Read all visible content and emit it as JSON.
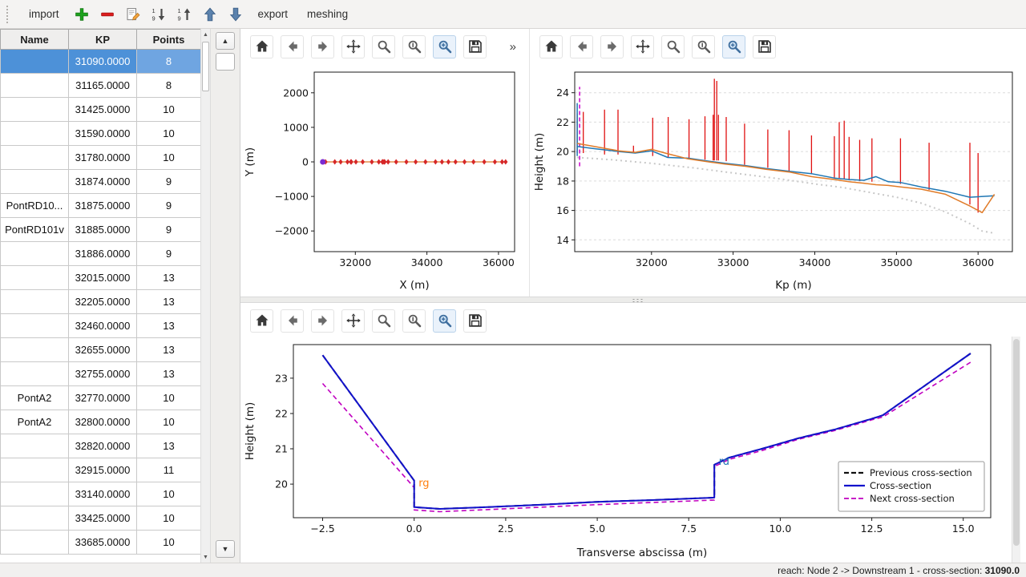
{
  "icons": {
    "up_arrow": "▲",
    "down_arrow": "▼"
  },
  "menubar": {
    "items": [
      {
        "kind": "button",
        "label": "import",
        "name": "import-button"
      },
      {
        "kind": "icon",
        "icon": "add",
        "name": "add-cross-section-button"
      },
      {
        "kind": "icon",
        "icon": "remove",
        "name": "remove-cross-section-button"
      },
      {
        "kind": "icon",
        "icon": "edit",
        "name": "edit-cross-section-button"
      },
      {
        "kind": "icon",
        "icon": "sort-down",
        "name": "sort-down-button"
      },
      {
        "kind": "icon",
        "icon": "sort-up",
        "name": "sort-up-button"
      },
      {
        "kind": "icon",
        "icon": "move-up",
        "name": "move-up-button"
      },
      {
        "kind": "icon",
        "icon": "move-down",
        "name": "move-down-button"
      },
      {
        "kind": "button",
        "label": "export",
        "name": "export-button"
      },
      {
        "kind": "button",
        "label": "meshing",
        "name": "meshing-button"
      }
    ]
  },
  "table": {
    "columns": [
      "Name",
      "KP",
      "Points"
    ],
    "selected_index": 0,
    "rows": [
      {
        "name": "",
        "kp": "31090.0000",
        "points": "8"
      },
      {
        "name": "",
        "kp": "31165.0000",
        "points": "8"
      },
      {
        "name": "",
        "kp": "31425.0000",
        "points": "10"
      },
      {
        "name": "",
        "kp": "31590.0000",
        "points": "10"
      },
      {
        "name": "",
        "kp": "31780.0000",
        "points": "10"
      },
      {
        "name": "",
        "kp": "31874.0000",
        "points": "9"
      },
      {
        "name": "PontRD10...",
        "kp": "31875.0000",
        "points": "9"
      },
      {
        "name": "PontRD101v",
        "kp": "31885.0000",
        "points": "9"
      },
      {
        "name": "",
        "kp": "31886.0000",
        "points": "9"
      },
      {
        "name": "",
        "kp": "32015.0000",
        "points": "13"
      },
      {
        "name": "",
        "kp": "32205.0000",
        "points": "13"
      },
      {
        "name": "",
        "kp": "32460.0000",
        "points": "13"
      },
      {
        "name": "",
        "kp": "32655.0000",
        "points": "13"
      },
      {
        "name": "",
        "kp": "32755.0000",
        "points": "13"
      },
      {
        "name": "PontA2",
        "kp": "32770.0000",
        "points": "10"
      },
      {
        "name": "PontA2",
        "kp": "32800.0000",
        "points": "10"
      },
      {
        "name": "",
        "kp": "32820.0000",
        "points": "13"
      },
      {
        "name": "",
        "kp": "32915.0000",
        "points": "11"
      },
      {
        "name": "",
        "kp": "33140.0000",
        "points": "10"
      },
      {
        "name": "",
        "kp": "33425.0000",
        "points": "10"
      },
      {
        "name": "",
        "kp": "33685.0000",
        "points": "10"
      }
    ]
  },
  "plot_toolbar": {
    "icons": [
      "home",
      "back",
      "forward",
      "pan",
      "zoom",
      "subplots",
      "customize",
      "save"
    ],
    "overflow_label": "»"
  },
  "statusbar": {
    "reach_label": "reach: Node 2 -> Downstream 1 - cross-section: ",
    "cross_section_value": "31090.0"
  },
  "chart_data": [
    {
      "id": "plan_view",
      "type": "scatter",
      "title": "",
      "xlabel": "X (m)",
      "ylabel": "Y (m)",
      "xlim": [
        30850,
        36450
      ],
      "ylim": [
        -2600,
        2600
      ],
      "xticks": [
        32000,
        34000,
        36000
      ],
      "yticks": [
        -2000,
        -1000,
        0,
        1000,
        2000
      ],
      "yticklabels": [
        "−2000",
        "−1000",
        "0",
        "1000",
        "2000"
      ],
      "grid": false,
      "series": [
        {
          "name": "river-axis",
          "type": "line",
          "color": "#e07b28",
          "width": 1.2,
          "x": [
            31090,
            36200
          ],
          "y": [
            0,
            0
          ]
        },
        {
          "name": "cross-section-markers",
          "type": "markers",
          "marker": "diamond",
          "color": "#d62728",
          "size": 2.6,
          "x": [
            31090,
            31165,
            31425,
            31590,
            31780,
            31874,
            31886,
            32015,
            32205,
            32460,
            32655,
            32755,
            32770,
            32800,
            32820,
            32915,
            33140,
            33425,
            33685,
            33960,
            34240,
            34420,
            34600,
            34800,
            35050,
            35300,
            35600,
            35900,
            36100,
            36200
          ],
          "y": 0
        },
        {
          "name": "selected-cross-section-marker",
          "type": "markers",
          "marker": "circle",
          "color": "#7a2bd1",
          "size": 3.5,
          "x": [
            31090
          ],
          "y": 0
        }
      ]
    },
    {
      "id": "profile",
      "type": "line",
      "title": "",
      "xlabel": "Kp (m)",
      "ylabel": "Height (m)",
      "xlim": [
        31060,
        36420
      ],
      "ylim": [
        13.2,
        25.4
      ],
      "xticks": [
        32000,
        33000,
        34000,
        35000,
        36000
      ],
      "yticks": [
        14,
        16,
        18,
        20,
        22,
        24
      ],
      "grid": true,
      "series": [
        {
          "name": "thalweg",
          "type": "line",
          "color": "#c8c8c8",
          "width": 2,
          "dash": "2 4",
          "x": [
            31090,
            31500,
            32000,
            32500,
            33000,
            33500,
            34000,
            34350,
            34700,
            35000,
            35300,
            35600,
            35900,
            36050,
            36200
          ],
          "y": [
            19.6,
            19.45,
            19.2,
            18.9,
            18.55,
            18.2,
            17.8,
            17.55,
            17.2,
            16.9,
            16.5,
            15.9,
            15.1,
            14.6,
            14.45
          ]
        },
        {
          "name": "cross-section-extents",
          "type": "vlines",
          "color": "#e01010",
          "width": 1.3,
          "segments": [
            [
              31090,
              19.9,
              22.6
            ],
            [
              31165,
              19.9,
              22.7
            ],
            [
              31425,
              19.8,
              22.85
            ],
            [
              31590,
              19.8,
              22.85
            ],
            [
              31780,
              19.9,
              20.4
            ],
            [
              32015,
              19.7,
              22.3
            ],
            [
              32205,
              19.6,
              22.35
            ],
            [
              32460,
              19.5,
              22.2
            ],
            [
              32655,
              19.45,
              22.4
            ],
            [
              32755,
              19.4,
              22.5
            ],
            [
              32770,
              19.4,
              24.95
            ],
            [
              32800,
              19.4,
              24.8
            ],
            [
              32820,
              19.4,
              22.5
            ],
            [
              32915,
              19.35,
              22.35
            ],
            [
              33140,
              19.1,
              21.9
            ],
            [
              33425,
              18.9,
              21.5
            ],
            [
              33685,
              18.7,
              21.45
            ],
            [
              33960,
              18.5,
              21.1
            ],
            [
              34240,
              18.2,
              21.05
            ],
            [
              34300,
              18.15,
              22.0
            ],
            [
              34360,
              18.1,
              22.1
            ],
            [
              34420,
              18.05,
              21.0
            ],
            [
              34550,
              18.0,
              20.8
            ],
            [
              34700,
              17.95,
              20.9
            ],
            [
              35050,
              17.8,
              20.9
            ],
            [
              35400,
              17.4,
              20.6
            ],
            [
              35900,
              16.4,
              20.6
            ],
            [
              36000,
              15.85,
              19.9
            ]
          ]
        },
        {
          "name": "selected-extent",
          "type": "vlines",
          "color": "#1f77b4",
          "width": 1.5,
          "segments": [
            [
              31090,
              19.7,
              23.3
            ]
          ]
        },
        {
          "name": "selected-extent-highlight",
          "type": "vlines",
          "color": "#cc00cc",
          "width": 1.5,
          "dash": "5 3",
          "segments": [
            [
              31120,
              19.0,
              24.4
            ]
          ]
        },
        {
          "name": "left-bank",
          "type": "line",
          "color": "#1f77b4",
          "width": 1.5,
          "x": [
            31090,
            31300,
            31600,
            31800,
            32000,
            32200,
            32450,
            32700,
            32900,
            33150,
            33400,
            33700,
            33960,
            34240,
            34420,
            34600,
            34750,
            34900,
            35050,
            35300,
            35600,
            35900,
            36200
          ],
          "y": [
            20.35,
            20.2,
            20.0,
            19.9,
            20.05,
            19.6,
            19.55,
            19.35,
            19.2,
            19.05,
            18.85,
            18.65,
            18.5,
            18.2,
            18.1,
            18.05,
            18.3,
            17.95,
            17.9,
            17.6,
            17.3,
            16.9,
            17.0
          ]
        },
        {
          "name": "right-bank",
          "type": "line",
          "color": "#e07b28",
          "width": 1.5,
          "x": [
            31090,
            31300,
            31600,
            31800,
            32000,
            32200,
            32450,
            32700,
            32900,
            33150,
            33400,
            33700,
            33960,
            34240,
            34420,
            34600,
            34750,
            34900,
            35050,
            35300,
            35600,
            35900,
            36050,
            36200
          ],
          "y": [
            20.55,
            20.35,
            20.05,
            19.95,
            20.15,
            19.85,
            19.5,
            19.3,
            19.15,
            19.0,
            18.8,
            18.6,
            18.3,
            18.1,
            17.95,
            17.85,
            17.75,
            17.7,
            17.6,
            17.45,
            17.1,
            16.3,
            15.85,
            17.1
          ]
        }
      ]
    },
    {
      "id": "cross_section",
      "type": "line",
      "title": "",
      "xlabel": "Transverse abscissa (m)",
      "ylabel": "Height (m)",
      "xlim": [
        -3.3,
        15.75
      ],
      "ylim": [
        19.05,
        23.95
      ],
      "xticks": [
        -2.5,
        0,
        2.5,
        5,
        7.5,
        10,
        12.5,
        15
      ],
      "xticklabels": [
        "−2.5",
        "0.0",
        "2.5",
        "5.0",
        "7.5",
        "10.0",
        "12.5",
        "15.0"
      ],
      "yticks": [
        20,
        21,
        22,
        23
      ],
      "grid": false,
      "series": [
        {
          "name": "previous-cross-section",
          "type": "line",
          "color": "#111111",
          "width": 2,
          "dash": "7 4",
          "x": [
            -2.5,
            0.0,
            0.0,
            0.7,
            2.0,
            3.5,
            5.0,
            6.5,
            8.2,
            8.2,
            8.6,
            9.5,
            10.5,
            11.5,
            12.5,
            12.8,
            15.2
          ],
          "y": [
            23.65,
            20.1,
            19.35,
            19.3,
            19.35,
            19.42,
            19.5,
            19.55,
            19.62,
            20.55,
            20.75,
            21.0,
            21.3,
            21.55,
            21.85,
            21.95,
            23.7
          ]
        },
        {
          "name": "next-cross-section",
          "type": "line",
          "color": "#c000c0",
          "width": 1.6,
          "dash": "6 4",
          "x": [
            -2.5,
            0.0,
            0.0,
            0.7,
            2.0,
            3.5,
            5.0,
            6.5,
            8.2,
            8.2,
            8.6,
            9.5,
            10.5,
            11.5,
            12.5,
            12.8,
            15.2
          ],
          "y": [
            22.85,
            19.9,
            19.27,
            19.22,
            19.28,
            19.35,
            19.42,
            19.48,
            19.55,
            20.5,
            20.7,
            20.95,
            21.27,
            21.52,
            21.82,
            21.9,
            23.45
          ]
        },
        {
          "name": "cross-section",
          "type": "line",
          "color": "#1212cc",
          "width": 2,
          "x": [
            -2.5,
            0.0,
            0.0,
            0.7,
            2.0,
            3.5,
            5.0,
            6.5,
            8.2,
            8.2,
            8.6,
            9.5,
            10.5,
            11.5,
            12.5,
            12.8,
            15.2
          ],
          "y": [
            23.65,
            20.1,
            19.35,
            19.3,
            19.35,
            19.42,
            19.5,
            19.55,
            19.62,
            20.55,
            20.75,
            21.0,
            21.3,
            21.55,
            21.85,
            21.95,
            23.7
          ]
        }
      ],
      "annotations": [
        {
          "text": "rg",
          "x": 0.12,
          "y": 19.93,
          "color": "#ff7f0e"
        },
        {
          "text": "rd",
          "x": 8.32,
          "y": 20.55,
          "color": "#1f77b4"
        }
      ],
      "legend": {
        "position": "lower right",
        "entries": [
          {
            "label": "Previous cross-section",
            "color": "#111111",
            "width": 2.2,
            "dash": "6 3"
          },
          {
            "label": "Cross-section",
            "color": "#1212cc",
            "width": 2.2,
            "dash": ""
          },
          {
            "label": "Next cross-section",
            "color": "#c000c0",
            "width": 1.8,
            "dash": "6 3"
          }
        ]
      }
    }
  ]
}
